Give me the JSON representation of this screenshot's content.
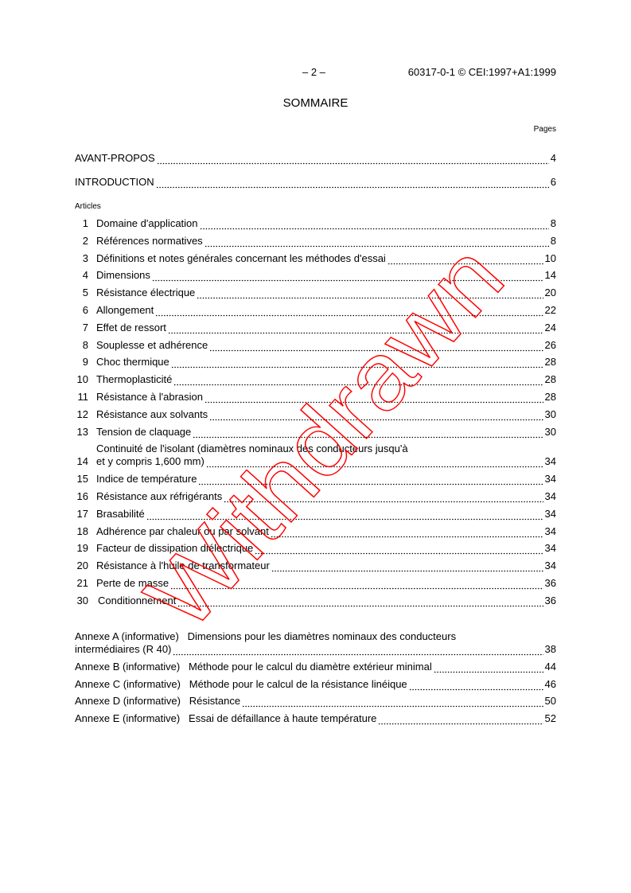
{
  "header": {
    "page_number": "– 2 –",
    "reference": "60317-0-1 © CEI:1997+A1:1999"
  },
  "title": "SOMMAIRE",
  "pages_label": "Pages",
  "front": [
    {
      "label": "AVANT-PROPOS",
      "page": "4"
    },
    {
      "label": "INTRODUCTION",
      "page": "6"
    }
  ],
  "articles_label": "Articles",
  "articles": [
    {
      "num": "1",
      "label": "Domaine d'application",
      "page": "8"
    },
    {
      "num": "2",
      "label": "Références normatives",
      "page": "8"
    },
    {
      "num": "3",
      "label": "Définitions et notes générales concernant les méthodes d'essai",
      "page": "10"
    },
    {
      "num": "4",
      "label": "Dimensions",
      "page": "14"
    },
    {
      "num": "5",
      "label": "Résistance électrique",
      "page": "20"
    },
    {
      "num": "6",
      "label": "Allongement",
      "page": "22"
    },
    {
      "num": "7",
      "label": "Effet de ressort",
      "page": "24"
    },
    {
      "num": "8",
      "label": "Souplesse et adhérence",
      "page": "26"
    },
    {
      "num": "9",
      "label": "Choc thermique",
      "page": "28"
    },
    {
      "num": "10",
      "label": "Thermoplasticité",
      "page": "28"
    },
    {
      "num": "11",
      "label": "Résistance à l'abrasion",
      "page": "28"
    },
    {
      "num": "12",
      "label": "Résistance aux solvants",
      "page": "30"
    },
    {
      "num": "13",
      "label": "Tension de claquage",
      "page": "30"
    },
    {
      "num": "14",
      "label": "Continuité de l'isolant (diamètres nominaux des conducteurs jusqu'à",
      "label2": "et y compris 1,600 mm)",
      "page": "34"
    },
    {
      "num": "15",
      "label": "Indice de température",
      "page": "34"
    },
    {
      "num": "16",
      "label": "Résistance aux réfrigérants",
      "page": "34"
    },
    {
      "num": "17",
      "label": "Brasabilité",
      "page": "34"
    },
    {
      "num": "18",
      "label": "Adhérence par chaleur ou par solvant",
      "page": "34"
    },
    {
      "num": "19",
      "label": "Facteur de dissipation diélectrique",
      "page": "34"
    },
    {
      "num": "20",
      "label": "Résistance à l'huile de transformateur",
      "page": "34"
    },
    {
      "num": "21",
      "label": "Perte de masse",
      "page": "36"
    },
    {
      "num": "30",
      "label": "Conditionnement",
      "page": "36"
    }
  ],
  "annexes": [
    {
      "label": "Annexe A (informative)   Dimensions pour les diamètres nominaux des conducteurs",
      "label2": "intermédiaires (R 40)",
      "page": "38"
    },
    {
      "label": "Annexe B (informative)   Méthode pour le calcul du diamètre extérieur minimal",
      "page": "44"
    },
    {
      "label": "Annexe C (informative)   Méthode pour le calcul de la résistance linéique",
      "page": "46"
    },
    {
      "label": "Annexe D (informative)   Résistance",
      "page": "50"
    },
    {
      "label": "Annexe E (informative)   Essai de défaillance à haute température",
      "page": "52"
    }
  ],
  "watermark": {
    "text": "Withdrawn",
    "color": "#ff0000"
  }
}
